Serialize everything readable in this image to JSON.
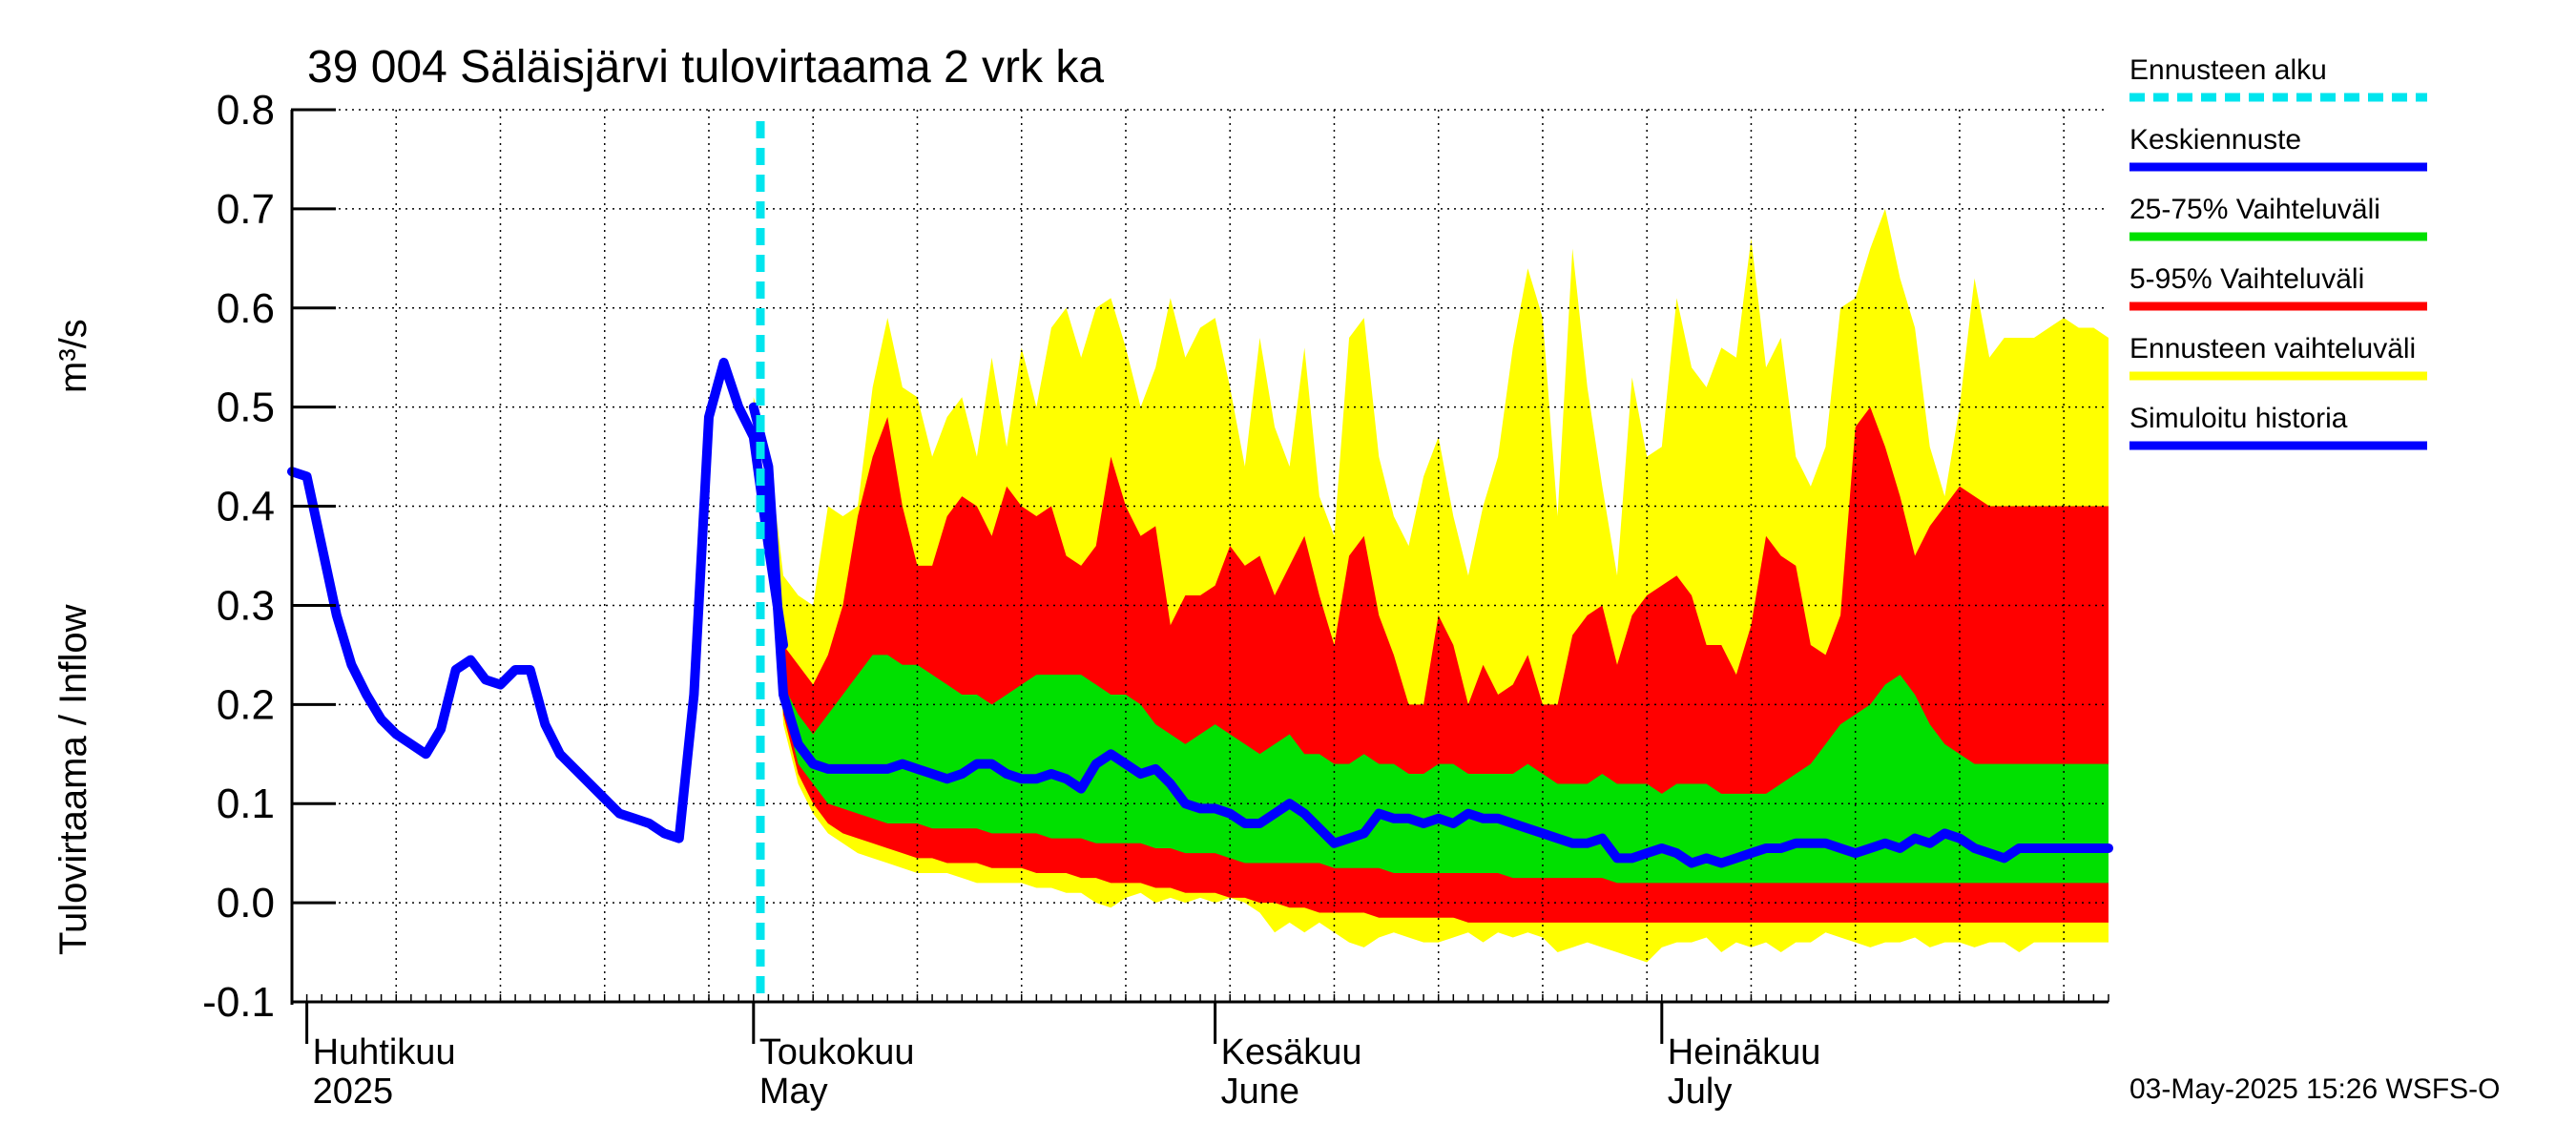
{
  "chart_data": {
    "type": "area",
    "title": "39 004 Säläisjärvi tulovirtaama 2 vrk ka",
    "ylabel_main": "Tulovirtaama / Inflow",
    "ylabel_unit": "m³/s",
    "ylim": [
      -0.1,
      0.8
    ],
    "yticks": [
      "0.8",
      "0.7",
      "0.6",
      "0.5",
      "0.4",
      "0.3",
      "0.2",
      "0.1",
      "0.0",
      "-0.1"
    ],
    "ytick_values": [
      0.8,
      0.7,
      0.6,
      0.5,
      0.4,
      0.3,
      0.2,
      0.1,
      0.0,
      -0.1
    ],
    "x_start": "2025-03-31",
    "x_end": "2025-07-31",
    "forecast_start": "2025-05-03",
    "month_labels": [
      {
        "date": "2025-04-01",
        "line1": "Huhtikuu",
        "line2": "2025"
      },
      {
        "date": "2025-05-01",
        "line1": "Toukokuu",
        "line2": "May"
      },
      {
        "date": "2025-06-01",
        "line1": "Kesäkuu",
        "line2": "June"
      },
      {
        "date": "2025-07-01",
        "line1": "Heinäkuu",
        "line2": "July"
      }
    ],
    "legend": [
      {
        "label": "Ennusteen alku",
        "color": "#00e5ee",
        "style": "dashed"
      },
      {
        "label": "Keskiennuste",
        "color": "#0000ff",
        "style": "solid"
      },
      {
        "label": "25-75% Vaihteluväli",
        "color": "#00e000",
        "style": "solid"
      },
      {
        "label": "5-95% Vaihteluväli",
        "color": "#ff0000",
        "style": "solid"
      },
      {
        "label": "Ennusteen vaihteluväli",
        "color": "#ffff00",
        "style": "solid"
      },
      {
        "label": "Simuloitu historia",
        "color": "#0000ff",
        "style": "solid"
      }
    ],
    "colors": {
      "range_full": "#ffff00",
      "range_5_95": "#ff0000",
      "range_25_75": "#00e000",
      "median": "#0000ff",
      "history": "#0000ff",
      "forecast_start": "#00e5ee",
      "grid": "#000000"
    },
    "history": {
      "dates": [
        "2025-03-31",
        "2025-04-01",
        "2025-04-02",
        "2025-04-03",
        "2025-04-04",
        "2025-04-05",
        "2025-04-06",
        "2025-04-07",
        "2025-04-08",
        "2025-04-09",
        "2025-04-10",
        "2025-04-11",
        "2025-04-12",
        "2025-04-13",
        "2025-04-14",
        "2025-04-15",
        "2025-04-16",
        "2025-04-17",
        "2025-04-18",
        "2025-04-19",
        "2025-04-20",
        "2025-04-21",
        "2025-04-22",
        "2025-04-23",
        "2025-04-24",
        "2025-04-25",
        "2025-04-26",
        "2025-04-27",
        "2025-04-28",
        "2025-04-29",
        "2025-04-30",
        "2025-05-01",
        "2025-05-02",
        "2025-05-03"
      ],
      "values": [
        0.435,
        0.43,
        0.36,
        0.29,
        0.24,
        0.21,
        0.185,
        0.17,
        0.16,
        0.15,
        0.175,
        0.235,
        0.245,
        0.225,
        0.22,
        0.235,
        0.235,
        0.18,
        0.15,
        0.135,
        0.12,
        0.105,
        0.09,
        0.085,
        0.08,
        0.07,
        0.065,
        0.21,
        0.49,
        0.545,
        0.5,
        0.47,
        0.36,
        0.26
      ]
    },
    "forecast": {
      "dates": [
        "2025-05-01",
        "2025-05-02",
        "2025-05-03",
        "2025-05-04",
        "2025-05-05",
        "2025-05-06",
        "2025-05-07",
        "2025-05-08",
        "2025-05-09",
        "2025-05-10",
        "2025-05-11",
        "2025-05-12",
        "2025-05-13",
        "2025-05-14",
        "2025-05-15",
        "2025-05-16",
        "2025-05-17",
        "2025-05-18",
        "2025-05-19",
        "2025-05-20",
        "2025-05-21",
        "2025-05-22",
        "2025-05-23",
        "2025-05-24",
        "2025-05-25",
        "2025-05-26",
        "2025-05-27",
        "2025-05-28",
        "2025-05-29",
        "2025-05-30",
        "2025-05-31",
        "2025-06-01",
        "2025-06-02",
        "2025-06-03",
        "2025-06-04",
        "2025-06-05",
        "2025-06-06",
        "2025-06-07",
        "2025-06-08",
        "2025-06-09",
        "2025-06-10",
        "2025-06-11",
        "2025-06-12",
        "2025-06-13",
        "2025-06-14",
        "2025-06-15",
        "2025-06-16",
        "2025-06-17",
        "2025-06-18",
        "2025-06-19",
        "2025-06-20",
        "2025-06-21",
        "2025-06-22",
        "2025-06-23",
        "2025-06-24",
        "2025-06-25",
        "2025-06-26",
        "2025-06-27",
        "2025-06-28",
        "2025-06-29",
        "2025-06-30",
        "2025-07-01",
        "2025-07-02",
        "2025-07-03",
        "2025-07-04",
        "2025-07-05",
        "2025-07-06",
        "2025-07-07",
        "2025-07-08",
        "2025-07-09",
        "2025-07-10",
        "2025-07-11",
        "2025-07-12",
        "2025-07-13",
        "2025-07-14",
        "2025-07-15",
        "2025-07-16",
        "2025-07-17",
        "2025-07-18",
        "2025-07-19",
        "2025-07-20",
        "2025-07-21",
        "2025-07-22",
        "2025-07-23",
        "2025-07-24",
        "2025-07-25",
        "2025-07-26",
        "2025-07-27",
        "2025-07-28",
        "2025-07-29",
        "2025-07-30",
        "2025-07-31"
      ],
      "max": [
        0.51,
        0.46,
        0.33,
        0.31,
        0.3,
        0.4,
        0.39,
        0.4,
        0.52,
        0.59,
        0.52,
        0.51,
        0.45,
        0.49,
        0.51,
        0.45,
        0.55,
        0.46,
        0.56,
        0.5,
        0.58,
        0.6,
        0.55,
        0.6,
        0.61,
        0.56,
        0.5,
        0.54,
        0.61,
        0.55,
        0.58,
        0.59,
        0.52,
        0.44,
        0.57,
        0.48,
        0.44,
        0.56,
        0.41,
        0.37,
        0.57,
        0.59,
        0.45,
        0.39,
        0.36,
        0.43,
        0.47,
        0.39,
        0.33,
        0.4,
        0.45,
        0.56,
        0.64,
        0.59,
        0.39,
        0.66,
        0.52,
        0.42,
        0.33,
        0.53,
        0.45,
        0.46,
        0.61,
        0.54,
        0.52,
        0.56,
        0.55,
        0.67,
        0.54,
        0.57,
        0.45,
        0.42,
        0.46,
        0.6,
        0.61,
        0.66,
        0.7,
        0.63,
        0.58,
        0.46,
        0.41,
        0.5,
        0.63,
        0.55,
        0.57,
        0.57,
        0.57,
        0.58,
        0.59,
        0.58,
        0.58,
        0.57
      ],
      "p95": [
        0.5,
        0.44,
        0.26,
        0.24,
        0.22,
        0.25,
        0.3,
        0.39,
        0.45,
        0.49,
        0.4,
        0.34,
        0.34,
        0.39,
        0.41,
        0.4,
        0.37,
        0.42,
        0.4,
        0.39,
        0.4,
        0.35,
        0.34,
        0.36,
        0.45,
        0.4,
        0.37,
        0.38,
        0.28,
        0.31,
        0.31,
        0.32,
        0.36,
        0.34,
        0.35,
        0.31,
        0.34,
        0.37,
        0.31,
        0.26,
        0.35,
        0.37,
        0.29,
        0.25,
        0.2,
        0.2,
        0.29,
        0.26,
        0.2,
        0.24,
        0.21,
        0.22,
        0.25,
        0.2,
        0.2,
        0.27,
        0.29,
        0.3,
        0.24,
        0.29,
        0.31,
        0.32,
        0.33,
        0.31,
        0.26,
        0.26,
        0.23,
        0.28,
        0.37,
        0.35,
        0.34,
        0.26,
        0.25,
        0.29,
        0.48,
        0.5,
        0.46,
        0.41,
        0.35,
        0.38,
        0.4,
        0.42,
        0.41,
        0.4,
        0.4,
        0.4,
        0.4,
        0.4,
        0.4,
        0.4,
        0.4,
        0.4
      ],
      "p75": [
        0.5,
        0.44,
        0.22,
        0.19,
        0.17,
        0.19,
        0.21,
        0.23,
        0.25,
        0.25,
        0.24,
        0.24,
        0.23,
        0.22,
        0.21,
        0.21,
        0.2,
        0.21,
        0.22,
        0.23,
        0.23,
        0.23,
        0.23,
        0.22,
        0.21,
        0.21,
        0.2,
        0.18,
        0.17,
        0.16,
        0.17,
        0.18,
        0.17,
        0.16,
        0.15,
        0.16,
        0.17,
        0.15,
        0.15,
        0.14,
        0.14,
        0.15,
        0.14,
        0.14,
        0.13,
        0.13,
        0.14,
        0.14,
        0.13,
        0.13,
        0.13,
        0.13,
        0.14,
        0.13,
        0.12,
        0.12,
        0.12,
        0.13,
        0.12,
        0.12,
        0.12,
        0.11,
        0.12,
        0.12,
        0.12,
        0.11,
        0.11,
        0.11,
        0.11,
        0.12,
        0.13,
        0.14,
        0.16,
        0.18,
        0.19,
        0.2,
        0.22,
        0.23,
        0.21,
        0.18,
        0.16,
        0.15,
        0.14,
        0.14,
        0.14,
        0.14,
        0.14,
        0.14,
        0.14,
        0.14,
        0.14,
        0.14
      ],
      "median": [
        0.5,
        0.44,
        0.21,
        0.16,
        0.14,
        0.135,
        0.135,
        0.135,
        0.135,
        0.135,
        0.14,
        0.135,
        0.13,
        0.125,
        0.13,
        0.14,
        0.14,
        0.13,
        0.125,
        0.125,
        0.13,
        0.125,
        0.115,
        0.14,
        0.15,
        0.14,
        0.13,
        0.135,
        0.12,
        0.1,
        0.095,
        0.095,
        0.09,
        0.08,
        0.08,
        0.09,
        0.1,
        0.09,
        0.075,
        0.06,
        0.065,
        0.07,
        0.09,
        0.085,
        0.085,
        0.08,
        0.085,
        0.08,
        0.09,
        0.085,
        0.085,
        0.08,
        0.075,
        0.07,
        0.065,
        0.06,
        0.06,
        0.065,
        0.045,
        0.045,
        0.05,
        0.055,
        0.05,
        0.04,
        0.045,
        0.04,
        0.045,
        0.05,
        0.055,
        0.055,
        0.06,
        0.06,
        0.06,
        0.055,
        0.05,
        0.055,
        0.06,
        0.055,
        0.065,
        0.06,
        0.07,
        0.065,
        0.055,
        0.05,
        0.045,
        0.055,
        0.055,
        0.055,
        0.055,
        0.055,
        0.055,
        0.055
      ],
      "p25": [
        0.5,
        0.44,
        0.2,
        0.14,
        0.12,
        0.1,
        0.095,
        0.09,
        0.085,
        0.08,
        0.08,
        0.08,
        0.075,
        0.075,
        0.075,
        0.075,
        0.07,
        0.07,
        0.07,
        0.07,
        0.065,
        0.065,
        0.065,
        0.06,
        0.06,
        0.06,
        0.06,
        0.055,
        0.055,
        0.05,
        0.05,
        0.05,
        0.045,
        0.04,
        0.04,
        0.04,
        0.04,
        0.04,
        0.04,
        0.035,
        0.035,
        0.035,
        0.035,
        0.03,
        0.03,
        0.03,
        0.03,
        0.03,
        0.03,
        0.03,
        0.03,
        0.025,
        0.025,
        0.025,
        0.025,
        0.025,
        0.025,
        0.025,
        0.02,
        0.02,
        0.02,
        0.02,
        0.02,
        0.02,
        0.02,
        0.02,
        0.02,
        0.02,
        0.02,
        0.02,
        0.02,
        0.02,
        0.02,
        0.02,
        0.02,
        0.02,
        0.02,
        0.02,
        0.02,
        0.02,
        0.02,
        0.02,
        0.02,
        0.02,
        0.02,
        0.02,
        0.02,
        0.02,
        0.02,
        0.02,
        0.02,
        0.02
      ],
      "p05": [
        0.5,
        0.44,
        0.19,
        0.13,
        0.1,
        0.08,
        0.07,
        0.065,
        0.06,
        0.055,
        0.05,
        0.045,
        0.045,
        0.04,
        0.04,
        0.04,
        0.035,
        0.035,
        0.035,
        0.03,
        0.03,
        0.03,
        0.025,
        0.025,
        0.02,
        0.02,
        0.02,
        0.015,
        0.015,
        0.01,
        0.01,
        0.01,
        0.005,
        0.005,
        0.0,
        0.0,
        -0.005,
        -0.005,
        -0.01,
        -0.01,
        -0.01,
        -0.01,
        -0.015,
        -0.015,
        -0.015,
        -0.015,
        -0.015,
        -0.015,
        -0.02,
        -0.02,
        -0.02,
        -0.02,
        -0.02,
        -0.02,
        -0.02,
        -0.02,
        -0.02,
        -0.02,
        -0.02,
        -0.02,
        -0.02,
        -0.02,
        -0.02,
        -0.02,
        -0.02,
        -0.02,
        -0.02,
        -0.02,
        -0.02,
        -0.02,
        -0.02,
        -0.02,
        -0.02,
        -0.02,
        -0.02,
        -0.02,
        -0.02,
        -0.02,
        -0.02,
        -0.02,
        -0.02,
        -0.02,
        -0.02,
        -0.02,
        -0.02,
        -0.02,
        -0.02,
        -0.02,
        -0.02,
        -0.02,
        -0.02,
        -0.02
      ],
      "min": [
        0.5,
        0.44,
        0.18,
        0.12,
        0.09,
        0.07,
        0.06,
        0.05,
        0.045,
        0.04,
        0.035,
        0.03,
        0.03,
        0.03,
        0.025,
        0.02,
        0.02,
        0.02,
        0.02,
        0.015,
        0.015,
        0.01,
        0.01,
        0.0,
        -0.005,
        0.005,
        0.01,
        0.0,
        0.005,
        0.0,
        0.005,
        0.0,
        0.005,
        0.0,
        -0.01,
        -0.03,
        -0.02,
        -0.03,
        -0.02,
        -0.03,
        -0.04,
        -0.045,
        -0.035,
        -0.03,
        -0.035,
        -0.04,
        -0.04,
        -0.035,
        -0.03,
        -0.04,
        -0.03,
        -0.035,
        -0.03,
        -0.035,
        -0.05,
        -0.045,
        -0.04,
        -0.045,
        -0.05,
        -0.055,
        -0.06,
        -0.045,
        -0.04,
        -0.04,
        -0.035,
        -0.05,
        -0.04,
        -0.045,
        -0.04,
        -0.05,
        -0.04,
        -0.04,
        -0.03,
        -0.035,
        -0.04,
        -0.045,
        -0.04,
        -0.04,
        -0.035,
        -0.045,
        -0.04,
        -0.04,
        -0.045,
        -0.04,
        -0.04,
        -0.05,
        -0.04,
        -0.04,
        -0.04,
        -0.04,
        -0.04,
        -0.04
      ]
    },
    "footer": "03-May-2025 15:26 WSFS-O"
  }
}
